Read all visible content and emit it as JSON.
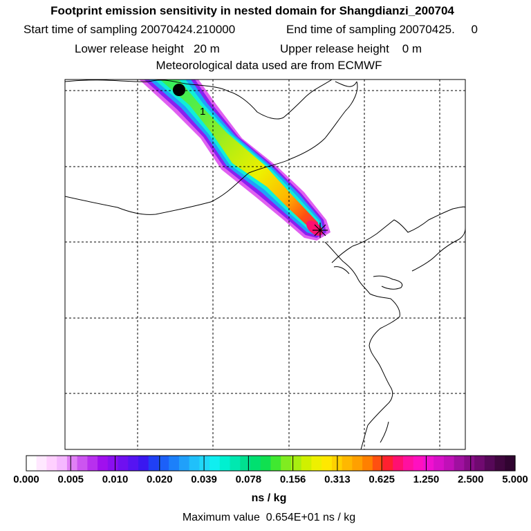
{
  "header": {
    "title": "Footprint emission sensitivity in nested domain for Shangdianzi_200704",
    "start_time": "Start time of sampling 20070424.210000",
    "end_time": "End time of sampling 20070425.     0",
    "lower_release": "Lower release height   20 m",
    "upper_release": "Upper release height    0 m",
    "met_data": "Meteorological data used are from ECMWF"
  },
  "map": {
    "label_1": "1"
  },
  "colorbar": {
    "tick_labels": [
      "0.000",
      "0.005",
      "0.010",
      "0.020",
      "0.039",
      "0.078",
      "0.156",
      "0.313",
      "0.625",
      "1.250",
      "2.500",
      "5.000"
    ],
    "colors": [
      "#ffffff",
      "#ffe8ff",
      "#ffd0ff",
      "#f5b8ff",
      "#e080f5",
      "#cc55f0",
      "#b830ee",
      "#a010ee",
      "#8a0ff0",
      "#6f10f0",
      "#5514f2",
      "#3a18f0",
      "#2040f5",
      "#1c60f8",
      "#1c80fa",
      "#20a0fa",
      "#20c0fa",
      "#20d8f8",
      "#10eef0",
      "#00f0d0",
      "#00e8b0",
      "#00e090",
      "#00e070",
      "#10e050",
      "#40e830",
      "#80ec20",
      "#a8ee10",
      "#d0f000",
      "#eef000",
      "#ffe800",
      "#ffd200",
      "#ffb800",
      "#ffa000",
      "#ff8000",
      "#ff5010",
      "#ff2030",
      "#ff1070",
      "#ff10a0",
      "#ff10c0",
      "#f010d0",
      "#d810c8",
      "#c010b8",
      "#a010a0",
      "#880c88",
      "#700a70",
      "#560858",
      "#40063f",
      "#300430"
    ],
    "units": "ns / kg",
    "max_value_text": "Maximum value  0.654E+01 ns / kg"
  }
}
